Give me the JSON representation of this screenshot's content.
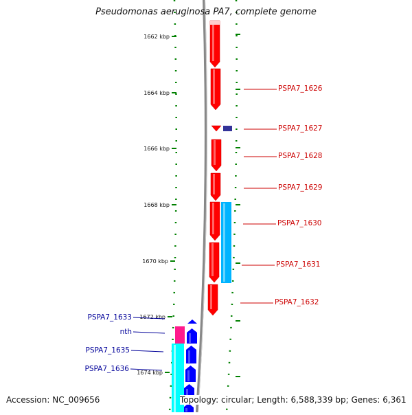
{
  "title": "Pseudomonas aeruginosa PA7, complete genome",
  "footer": {
    "accession": "Accession: NC_009656",
    "summary": "Topology: circular; Length: 6,588,339 bp; Genes: 6,361"
  },
  "colors": {
    "forward_gene": "#ff0000",
    "reverse_gene": "#0000ff",
    "cyan_feature": "#00ffff",
    "light_blue_feature": "#00b4ff",
    "pink_feature": "#ff1a8c",
    "purple_feature": "#333399",
    "right_label": "#cc0000",
    "left_label": "#000099",
    "tick": "#008000",
    "backbone": "#888888"
  },
  "ruler_ticks": [
    {
      "label": "1662 kbp"
    },
    {
      "label": "1664 kbp"
    },
    {
      "label": "1666 kbp"
    },
    {
      "label": "1668 kbp"
    },
    {
      "label": "1670 kbp"
    },
    {
      "label": "1672 kbp"
    },
    {
      "label": "1674 kbp"
    }
  ],
  "right_labels": [
    "PSPA7_1626",
    "PSPA7_1627",
    "PSPA7_1628",
    "PSPA7_1629",
    "PSPA7_1630",
    "PSPA7_1631",
    "PSPA7_1632"
  ],
  "left_labels": [
    "PSPA7_1633",
    "nth",
    "PSPA7_1635",
    "PSPA7_1636"
  ]
}
